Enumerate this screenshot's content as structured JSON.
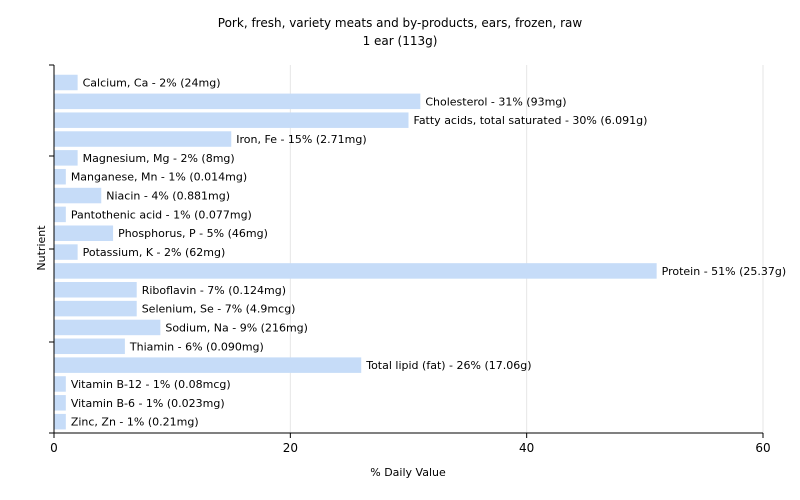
{
  "chart_data": {
    "type": "bar",
    "orientation": "horizontal",
    "title": "Pork, fresh, variety meats and by-products, ears, frozen, raw",
    "subtitle": "1 ear (113g)",
    "xlabel": "% Daily Value",
    "ylabel": "Nutrient",
    "xlim": [
      0,
      60
    ],
    "xticks": [
      0,
      20,
      40,
      60
    ],
    "grid": true,
    "bar_color": "#c6dcf8",
    "categories": [
      "Calcium, Ca",
      "Cholesterol",
      "Fatty acids, total saturated",
      "Iron, Fe",
      "Magnesium, Mg",
      "Manganese, Mn",
      "Niacin",
      "Pantothenic acid",
      "Phosphorus, P",
      "Potassium, K",
      "Protein",
      "Riboflavin",
      "Selenium, Se",
      "Sodium, Na",
      "Thiamin",
      "Total lipid (fat)",
      "Vitamin B-12",
      "Vitamin B-6",
      "Zinc, Zn"
    ],
    "values": [
      2,
      31,
      30,
      15,
      2,
      1,
      4,
      1,
      5,
      2,
      51,
      7,
      7,
      9,
      6,
      26,
      1,
      1,
      1
    ],
    "labels": [
      "Calcium, Ca - 2% (24mg)",
      "Cholesterol - 31% (93mg)",
      "Fatty acids, total saturated - 30% (6.091g)",
      "Iron, Fe - 15% (2.71mg)",
      "Magnesium, Mg - 2% (8mg)",
      "Manganese, Mn - 1% (0.014mg)",
      "Niacin - 4% (0.881mg)",
      "Pantothenic acid - 1% (0.077mg)",
      "Phosphorus, P - 5% (46mg)",
      "Potassium, K - 2% (62mg)",
      "Protein - 51% (25.37g)",
      "Riboflavin - 7% (0.124mg)",
      "Selenium, Se - 7% (4.9mcg)",
      "Sodium, Na - 9% (216mg)",
      "Thiamin - 6% (0.090mg)",
      "Total lipid (fat) - 26% (17.06g)",
      "Vitamin B-12 - 1% (0.08mcg)",
      "Vitamin B-6 - 1% (0.023mg)",
      "Zinc, Zn - 1% (0.21mg)"
    ]
  }
}
